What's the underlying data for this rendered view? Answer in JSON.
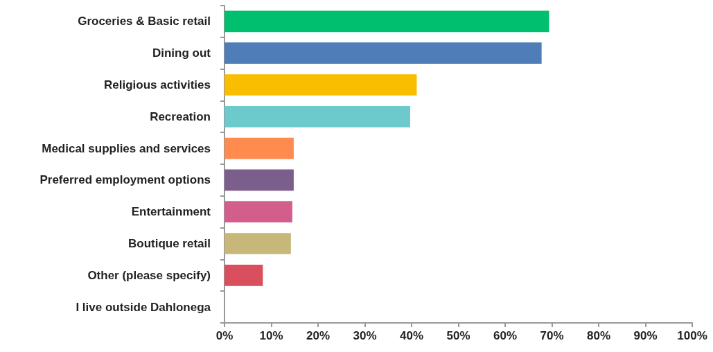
{
  "chart_data": {
    "type": "bar",
    "orientation": "horizontal",
    "categories": [
      "Groceries & Basic retail",
      "Dining out",
      "Religious activities",
      "Recreation",
      "Medical supplies and services",
      "Preferred employment options",
      "Entertainment",
      "Boutique retail",
      "Other (please specify)",
      "I live outside Dahlonega"
    ],
    "values": [
      69.4,
      67.8,
      41.1,
      39.7,
      14.8,
      14.8,
      14.5,
      14.2,
      8.2,
      0
    ],
    "colors": [
      "#00bf6f",
      "#4f7db7",
      "#f9be00",
      "#6ccacc",
      "#ff8b4f",
      "#7c5e8d",
      "#d35e8e",
      "#c7b879",
      "#da4f5d",
      "#888888"
    ],
    "xlim": [
      0,
      100
    ],
    "xticks": [
      {
        "value": 0,
        "label": "0%"
      },
      {
        "value": 10,
        "label": "10%"
      },
      {
        "value": 20,
        "label": "20%"
      },
      {
        "value": 30,
        "label": "30%"
      },
      {
        "value": 40,
        "label": "40%"
      },
      {
        "value": 50,
        "label": "50%"
      },
      {
        "value": 60,
        "label": "60%"
      },
      {
        "value": 70,
        "label": "70%"
      },
      {
        "value": 80,
        "label": "80%"
      },
      {
        "value": 90,
        "label": "90%"
      },
      {
        "value": 100,
        "label": "100%"
      }
    ],
    "grid": false
  }
}
